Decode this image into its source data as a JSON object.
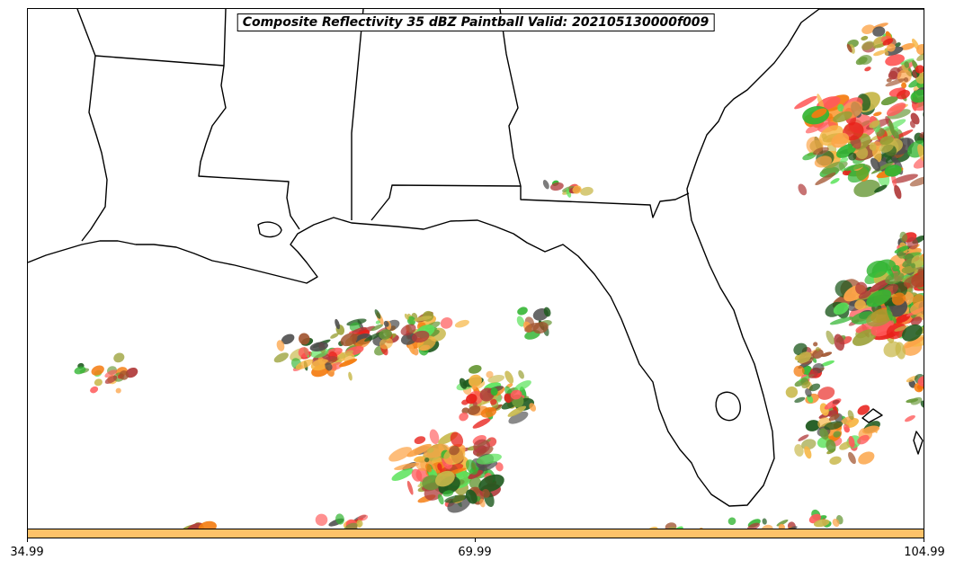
{
  "title": "Composite Reflectivity 35 dBZ Paintball Valid: 202105130000f009",
  "colorbar": {
    "color": "#fdc269",
    "ticks": [
      "34.99",
      "69.99",
      "104.99"
    ]
  },
  "paint_colors": [
    "#b03a3a",
    "#e8201a",
    "#ff5a5a",
    "#f47c10",
    "#fca448",
    "#f6b542",
    "#c8b84a",
    "#9aa036",
    "#6a9a3a",
    "#5be35b",
    "#33b533",
    "#4e4e4e",
    "#1f5a1f",
    "#a0522d"
  ]
}
